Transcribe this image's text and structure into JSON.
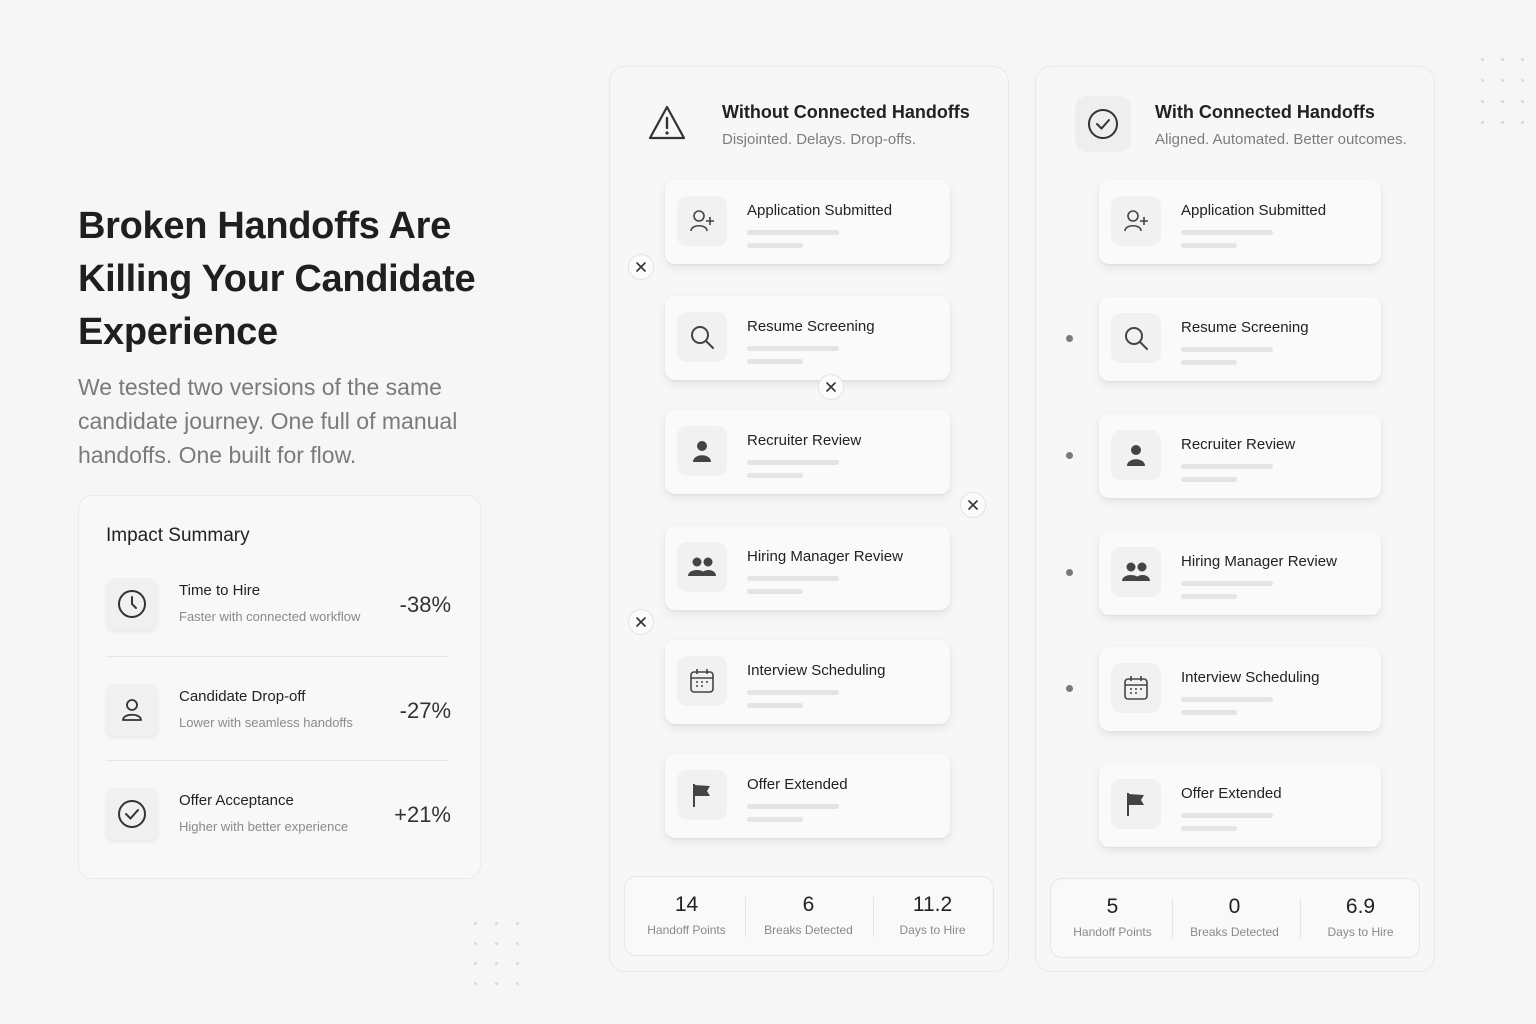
{
  "hero": {
    "title": "Broken Handoffs Are Killing Your Candidate Experience",
    "subtitle": "We tested two versions of the same candidate journey. One full of manual handoffs. One built for flow."
  },
  "impact": {
    "title": "Impact Summary",
    "metrics": [
      {
        "name": "Time to Hire",
        "desc": "Faster with connected workflow",
        "value": "-38%",
        "icon": "clock-icon"
      },
      {
        "name": "Candidate Drop-off",
        "desc": "Lower with seamless handoffs",
        "value": "-27%",
        "icon": "user-icon"
      },
      {
        "name": "Offer Acceptance",
        "desc": "Higher with better experience",
        "value": "+21%",
        "icon": "check-circle-icon"
      }
    ]
  },
  "without": {
    "title": "Without Connected Handoffs",
    "subtitle": "Disjointed. Delays. Drop-offs.",
    "steps": [
      {
        "label": "Application Submitted",
        "icon": "add-user-icon"
      },
      {
        "label": "Resume Screening",
        "icon": "search-icon"
      },
      {
        "label": "Recruiter Review",
        "icon": "person-icon"
      },
      {
        "label": "Hiring Manager Review",
        "icon": "group-icon"
      },
      {
        "label": "Interview Scheduling",
        "icon": "calendar-icon"
      },
      {
        "label": "Offer Extended",
        "icon": "flag-icon"
      }
    ],
    "stats": [
      {
        "value": "14",
        "label": "Handoff Points"
      },
      {
        "value": "6",
        "label": "Breaks Detected"
      },
      {
        "value": "11.2",
        "label": "Days to Hire"
      }
    ]
  },
  "with": {
    "title": "With Connected Handoffs",
    "subtitle": "Aligned. Automated. Better outcomes.",
    "steps": [
      {
        "label": "Application Submitted",
        "icon": "add-user-icon"
      },
      {
        "label": "Resume Screening",
        "icon": "search-icon"
      },
      {
        "label": "Recruiter Review",
        "icon": "person-icon"
      },
      {
        "label": "Hiring Manager Review",
        "icon": "group-icon"
      },
      {
        "label": "Interview Scheduling",
        "icon": "calendar-icon"
      },
      {
        "label": "Offer Extended",
        "icon": "flag-icon"
      }
    ],
    "stats": [
      {
        "value": "5",
        "label": "Handoff Points"
      },
      {
        "value": "0",
        "label": "Breaks Detected"
      },
      {
        "value": "6.9",
        "label": "Days to Hire"
      }
    ]
  }
}
